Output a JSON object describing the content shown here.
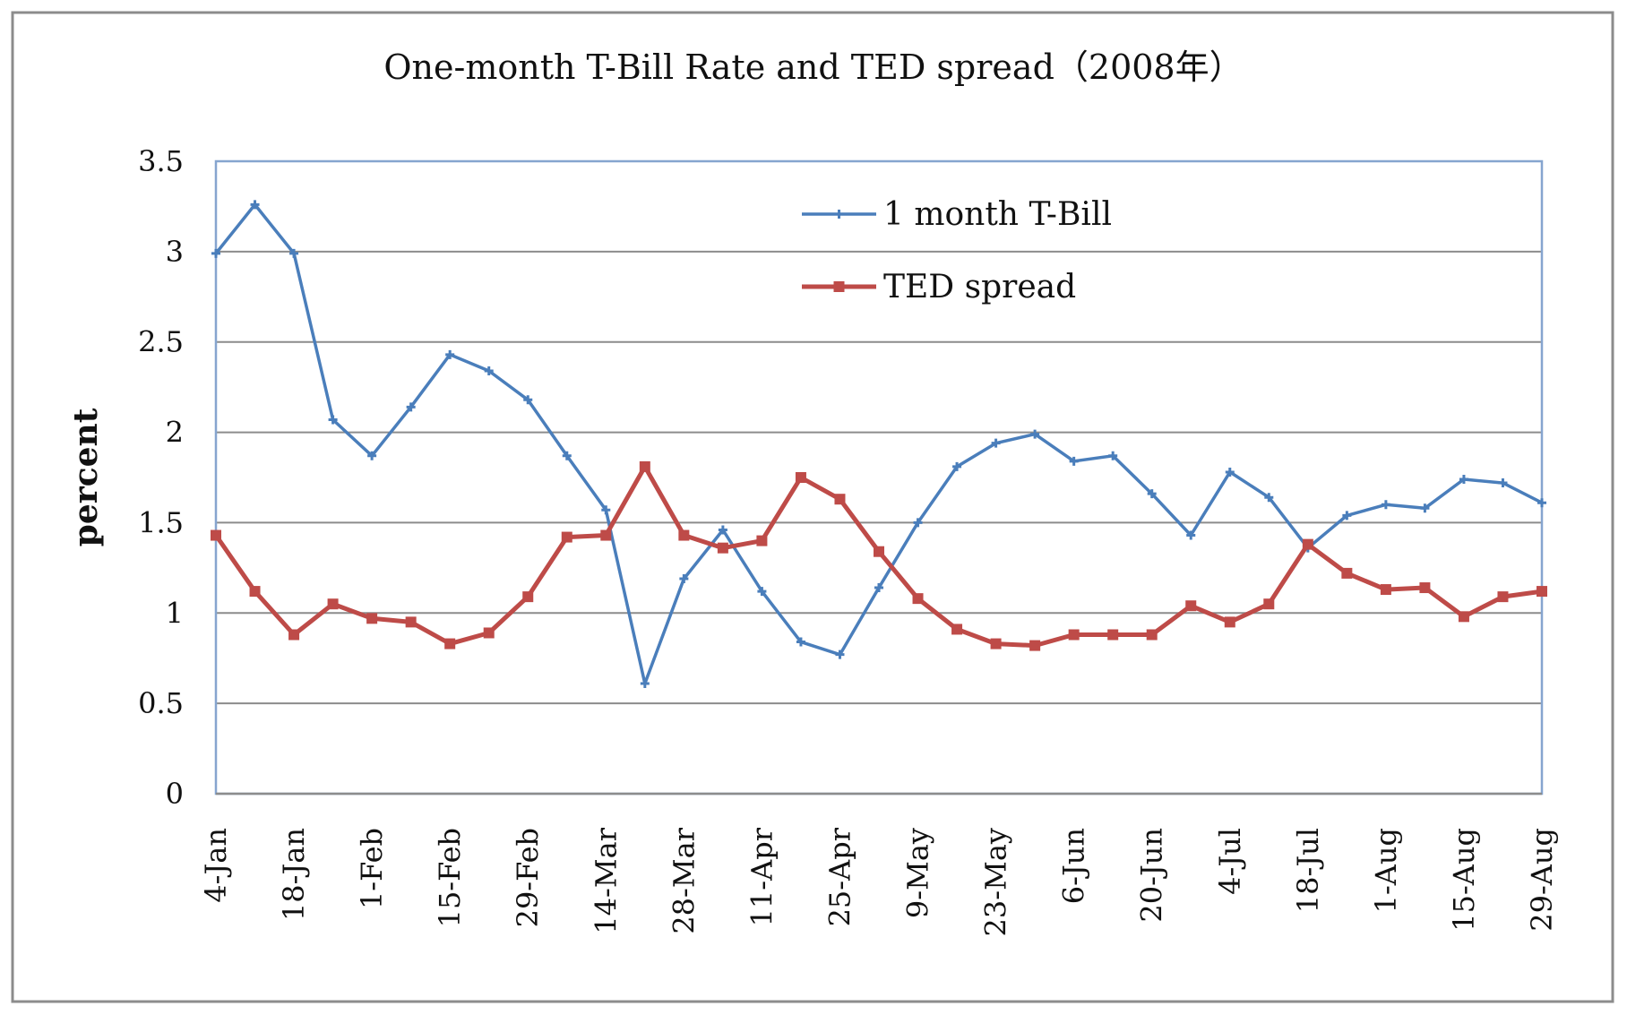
{
  "chart_data": {
    "type": "line",
    "title": "One-month T-Bill Rate and TED spread（2008年）",
    "xlabel": "",
    "ylabel": "percent",
    "ylim": [
      0,
      3.5
    ],
    "yticks": [
      0,
      0.5,
      1,
      1.5,
      2,
      2.5,
      3,
      3.5
    ],
    "ytick_labels": [
      "0",
      "0.5",
      "1",
      "1.5",
      "2",
      "2.5",
      "3",
      "3.5"
    ],
    "grid": "horizontal",
    "legend_position": "top-center",
    "tick_labels": [
      "4-Jan",
      "18-Jan",
      "1-Feb",
      "15-Feb",
      "29-Feb",
      "14-Mar",
      "28-Mar",
      "11-Apr",
      "25-Apr",
      "9-May",
      "23-May",
      "6-Jun",
      "20-Jun",
      "4-Jul",
      "18-Jul",
      "1-Aug",
      "15-Aug",
      "29-Aug"
    ],
    "x": [
      "4-Jan",
      "11-Jan",
      "18-Jan",
      "25-Jan",
      "1-Feb",
      "8-Feb",
      "15-Feb",
      "22-Feb",
      "29-Feb",
      "7-Mar",
      "14-Mar",
      "21-Mar",
      "28-Mar",
      "4-Apr",
      "11-Apr",
      "18-Apr",
      "25-Apr",
      "2-May",
      "9-May",
      "16-May",
      "23-May",
      "30-May",
      "6-Jun",
      "13-Jun",
      "20-Jun",
      "27-Jun",
      "4-Jul",
      "11-Jul",
      "18-Jul",
      "25-Jul",
      "1-Aug",
      "8-Aug",
      "15-Aug",
      "22-Aug",
      "29-Aug"
    ],
    "series": [
      {
        "name": "1 month T-Bill",
        "color": "#4a7ebb",
        "marker": "cross",
        "values": [
          2.99,
          3.26,
          2.99,
          2.07,
          1.87,
          2.14,
          2.43,
          2.34,
          2.18,
          1.87,
          1.57,
          0.61,
          1.19,
          1.46,
          1.12,
          0.84,
          0.77,
          1.14,
          1.5,
          1.81,
          1.94,
          1.99,
          1.84,
          1.87,
          1.66,
          1.43,
          1.78,
          1.64,
          1.36,
          1.54,
          1.6,
          1.58,
          1.74,
          1.72,
          1.61
        ]
      },
      {
        "name": "TED spread",
        "color": "#be4b48",
        "marker": "square",
        "values": [
          1.43,
          1.12,
          0.88,
          1.05,
          0.97,
          0.95,
          0.83,
          0.89,
          1.09,
          1.42,
          1.43,
          1.81,
          1.43,
          1.36,
          1.4,
          1.75,
          1.63,
          1.34,
          1.08,
          0.91,
          0.83,
          0.82,
          0.88,
          0.88,
          0.88,
          1.04,
          0.95,
          1.05,
          1.38,
          1.22,
          1.13,
          1.14,
          0.98,
          1.09,
          1.12
        ]
      }
    ]
  }
}
